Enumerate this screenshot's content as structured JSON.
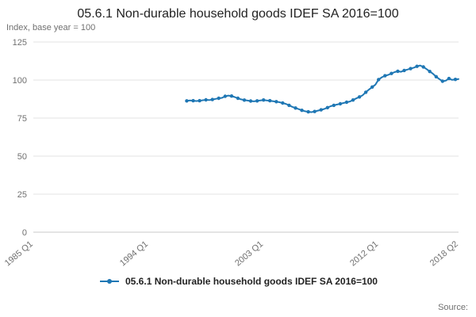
{
  "title": "05.6.1 Non-durable household goods IDEF SA 2016=100",
  "subtitle": "Index, base year = 100",
  "source_label": "Source:",
  "legend": {
    "label": "05.6.1 Non-durable household goods IDEF SA 2016=100",
    "color": "#1f77b4"
  },
  "chart_data": {
    "type": "line",
    "title": "05.6.1 Non-durable household goods IDEF SA 2016=100",
    "xlabel": "",
    "ylabel": "Index, base year = 100",
    "grid": true,
    "legend_position": "bottom",
    "x_axis": {
      "ticks": [
        "1985 Q1",
        "1994 Q1",
        "2003 Q1",
        "2012 Q1",
        "2018 Q2"
      ],
      "range": [
        "1985 Q1",
        "2018 Q2"
      ]
    },
    "y_axis": {
      "ticks": [
        0,
        25,
        50,
        75,
        100,
        125
      ],
      "range": [
        0,
        125
      ]
    },
    "series": [
      {
        "name": "05.6.1 Non-durable household goods IDEF SA 2016=100",
        "color": "#1f77b4",
        "frequency": "quarterly",
        "start_period": "1997 Q1",
        "end_period": "2018 Q2",
        "values": [
          86.3,
          86.6,
          86.4,
          86.2,
          86.4,
          86.7,
          87.0,
          86.8,
          87.2,
          87.6,
          88.0,
          88.3,
          89.3,
          89.8,
          89.5,
          88.8,
          88.0,
          87.3,
          86.8,
          86.5,
          86.2,
          86.0,
          86.3,
          86.6,
          86.9,
          86.6,
          86.4,
          86.1,
          85.8,
          85.4,
          84.9,
          84.3,
          83.4,
          82.4,
          81.6,
          80.9,
          80.1,
          79.5,
          79.1,
          78.9,
          79.3,
          79.9,
          80.4,
          81.0,
          81.9,
          82.8,
          83.4,
          83.9,
          84.4,
          84.9,
          85.4,
          85.9,
          86.9,
          87.9,
          88.9,
          90.0,
          92.0,
          93.8,
          95.4,
          97.0,
          100.3,
          101.8,
          102.8,
          103.4,
          104.3,
          105.2,
          105.8,
          105.4,
          106.3,
          106.9,
          107.5,
          108.1,
          109.0,
          109.6,
          108.6,
          107.2,
          105.6,
          104.1,
          102.2,
          100.6,
          99.2,
          99.6,
          101.0,
          100.1,
          100.4,
          100.7
        ]
      }
    ]
  }
}
